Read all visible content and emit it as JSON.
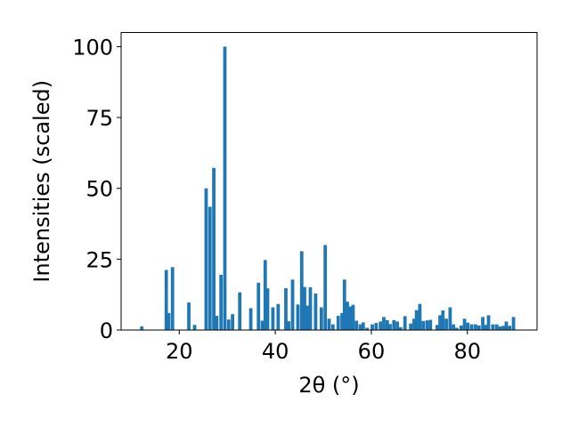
{
  "chart_data": {
    "type": "bar",
    "title": "",
    "xlabel": "2θ (°)",
    "ylabel": "Intensities (scaled)",
    "xlim": [
      7.9,
      94.5
    ],
    "ylim": [
      0,
      105
    ],
    "x_ticks": [
      20,
      40,
      60,
      80
    ],
    "y_ticks": [
      0,
      25,
      50,
      75,
      100
    ],
    "grid": false,
    "legend": "none",
    "bar_width": 0.7,
    "color": "#1f77b4",
    "series": [
      {
        "x": [
          12.2,
          17.3,
          17.8,
          18.6,
          22.0,
          23.2,
          25.6,
          26.4,
          27.2,
          27.8,
          28.7,
          29.5,
          30.3,
          31.1,
          32.6,
          34.9,
          36.5,
          37.3,
          37.9,
          38.4,
          39.5,
          40.6,
          42.2,
          42.8,
          43.6,
          44.7,
          45.5,
          46.1,
          46.7,
          47.3,
          48.4,
          49.6,
          50.4,
          51.2,
          52.0,
          53.1,
          53.9,
          54.4,
          55.0,
          55.6,
          56.2,
          56.9,
          57.7,
          58.3,
          59.1,
          60.2,
          61.0,
          61.9,
          62.6,
          63.3,
          63.9,
          64.7,
          65.4,
          66.1,
          67.0,
          68.2,
          68.9,
          69.4,
          70.1,
          70.8,
          71.6,
          72.3,
          73.7,
          74.3,
          74.9,
          75.6,
          76.4,
          77.1,
          77.8,
          78.7,
          79.4,
          80.1,
          80.9,
          81.7,
          82.4,
          83.2,
          83.8,
          84.4,
          85.3,
          86.1,
          86.8,
          87.5,
          88.1,
          88.8,
          89.6
        ],
        "values": [
          1.3,
          21.2,
          6.0,
          22.2,
          9.7,
          1.8,
          50.0,
          43.5,
          57.2,
          5.0,
          19.5,
          100.0,
          3.7,
          5.6,
          13.3,
          7.7,
          16.7,
          3.3,
          24.7,
          14.7,
          8.0,
          9.2,
          14.8,
          3.1,
          17.8,
          9.0,
          27.8,
          15.2,
          8.6,
          15.1,
          12.9,
          8.0,
          30.0,
          4.0,
          2.0,
          5.0,
          6.0,
          17.8,
          10.0,
          8.3,
          8.9,
          3.3,
          2.0,
          2.7,
          0.8,
          2.0,
          2.5,
          3.0,
          4.6,
          3.5,
          2.1,
          3.5,
          3.0,
          1.0,
          4.9,
          2.3,
          4.0,
          7.0,
          9.2,
          3.2,
          3.4,
          3.6,
          1.8,
          5.2,
          6.9,
          4.0,
          8.0,
          2.0,
          0.8,
          1.6,
          4.0,
          2.6,
          2.0,
          2.0,
          1.6,
          4.6,
          1.8,
          5.2,
          2.0,
          2.0,
          1.3,
          1.5,
          3.0,
          1.5,
          4.6
        ]
      }
    ]
  }
}
